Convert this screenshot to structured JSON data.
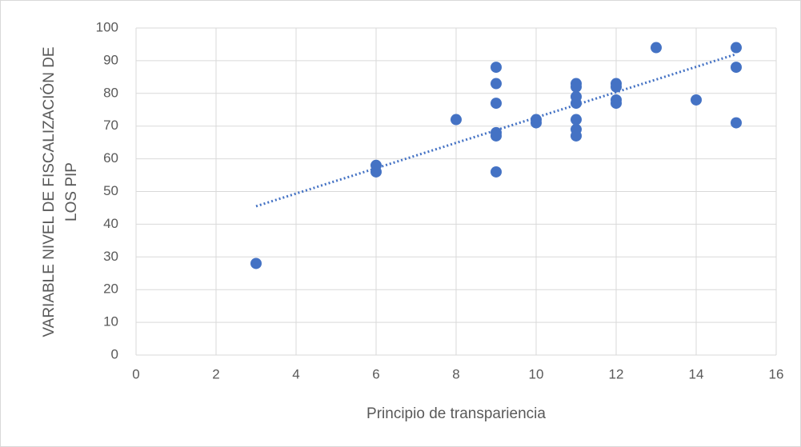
{
  "chart_data": {
    "type": "scatter",
    "xlabel": "Principio de transpariencia",
    "ylabel_lines": [
      "VARIABLE NIVEL DE FISCALIZACIÓN DE",
      "LOS PIP"
    ],
    "series": [
      {
        "color": "#4472c4",
        "x": [
          3,
          6,
          6,
          8,
          9,
          9,
          9,
          9,
          9,
          9,
          10,
          10,
          11,
          11,
          11,
          11,
          11,
          11,
          11,
          12,
          12,
          12,
          12,
          13,
          14,
          15,
          15,
          15
        ],
        "values": [
          28,
          58,
          56,
          72,
          88,
          83,
          77,
          68,
          67,
          56,
          72,
          71,
          83,
          82,
          79,
          77,
          72,
          69,
          67,
          83,
          82,
          78,
          77,
          94,
          78,
          94,
          88,
          71
        ]
      }
    ],
    "trendline": {
      "color": "#4472c4",
      "x": [
        3,
        15
      ],
      "values": [
        45.5,
        92
      ]
    },
    "xlim": [
      0,
      16
    ],
    "xticks": [
      0,
      2,
      4,
      6,
      8,
      10,
      12,
      14,
      16
    ],
    "ylim": [
      0,
      100
    ],
    "yticks": [
      0,
      10,
      20,
      30,
      40,
      50,
      60,
      70,
      80,
      90,
      100
    ],
    "grid": true
  }
}
